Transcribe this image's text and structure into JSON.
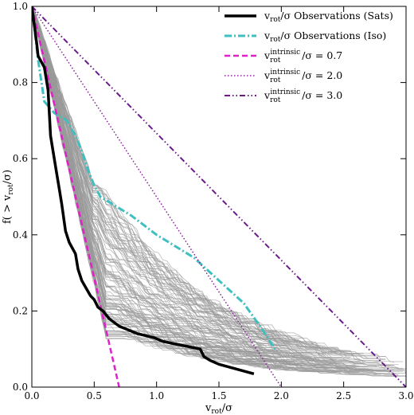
{
  "chart_data": {
    "type": "line",
    "title": "",
    "xlabel": "v_rot/σ",
    "ylabel": "f( > v_rot/σ)",
    "xlim": [
      0.0,
      3.0
    ],
    "ylim": [
      0.0,
      1.0
    ],
    "xticks": [
      "0.0",
      "0.5",
      "1.0",
      "1.5",
      "2.0",
      "2.5",
      "3.0"
    ],
    "yticks": [
      "0.0",
      "0.2",
      "0.4",
      "0.6",
      "0.8",
      "1.0"
    ],
    "xtick_values": [
      0.0,
      0.5,
      1.0,
      1.5,
      2.0,
      2.5,
      3.0
    ],
    "ytick_values": [
      0.0,
      0.2,
      0.4,
      0.6,
      0.8,
      1.0
    ],
    "legend_position": "top-right",
    "simulated_band": {
      "color": "#999999",
      "description_count": 120
    },
    "series": [
      {
        "name": "v_rot/σ Observations (Sats)",
        "legend_main": "v",
        "legend_sub": "rot",
        "legend_rest": "/σ Observations (Sats)",
        "color": "#000000",
        "style": "solid",
        "width": 3.5,
        "x": [
          0.0,
          0.04,
          0.05,
          0.1,
          0.13,
          0.15,
          0.17,
          0.2,
          0.22,
          0.24,
          0.27,
          0.3,
          0.35,
          0.37,
          0.4,
          0.47,
          0.5,
          0.53,
          0.57,
          0.62,
          0.7,
          0.85,
          0.98,
          1.05,
          1.35,
          1.38,
          1.43,
          1.5,
          1.78
        ],
        "y": [
          1.0,
          0.9,
          0.87,
          0.84,
          0.78,
          0.66,
          0.62,
          0.56,
          0.52,
          0.48,
          0.41,
          0.38,
          0.35,
          0.31,
          0.28,
          0.24,
          0.23,
          0.21,
          0.2,
          0.18,
          0.16,
          0.14,
          0.13,
          0.12,
          0.1,
          0.08,
          0.07,
          0.06,
          0.035
        ]
      },
      {
        "name": "v_rot/σ Observations (Iso)",
        "legend_main": "v",
        "legend_sub": "rot",
        "legend_rest": "/σ Observations (Iso)",
        "color": "#3fbfbf",
        "style": "dashdot",
        "width": 3,
        "x": [
          0.0,
          0.05,
          0.1,
          0.18,
          0.28,
          0.35,
          0.4,
          0.45,
          0.5,
          0.55,
          0.65,
          0.8,
          1.0,
          1.3,
          1.5,
          1.7,
          1.85,
          1.95
        ],
        "y": [
          1.0,
          0.86,
          0.75,
          0.72,
          0.7,
          0.66,
          0.62,
          0.57,
          0.53,
          0.5,
          0.48,
          0.45,
          0.4,
          0.34,
          0.28,
          0.22,
          0.15,
          0.1
        ]
      },
      {
        "name": "v_rot^intrinsic/σ = 0.7",
        "legend_main": "v",
        "legend_sub": "rot",
        "legend_sup": "intrinsic",
        "legend_rest": "/σ = 0.7",
        "color": "#e020c8",
        "style": "dashed",
        "width": 2.5,
        "x": [
          0.0,
          0.7
        ],
        "y": [
          1.0,
          0.0
        ]
      },
      {
        "name": "v_rot^intrinsic/σ = 2.0",
        "legend_main": "v",
        "legend_sub": "rot",
        "legend_sup": "intrinsic",
        "legend_rest": "/σ = 2.0",
        "color": "#8a1f9a",
        "style": "dotted",
        "width": 1.5,
        "x": [
          0.0,
          2.0
        ],
        "y": [
          1.0,
          0.0
        ]
      },
      {
        "name": "v_rot^intrinsic/σ = 3.0",
        "legend_main": "v",
        "legend_sub": "rot",
        "legend_sup": "intrinsic",
        "legend_rest": "/σ = 3.0",
        "color": "#6a1a8a",
        "style": "dashdotdot",
        "width": 2,
        "x": [
          0.0,
          3.0
        ],
        "y": [
          1.0,
          0.0
        ]
      }
    ]
  }
}
